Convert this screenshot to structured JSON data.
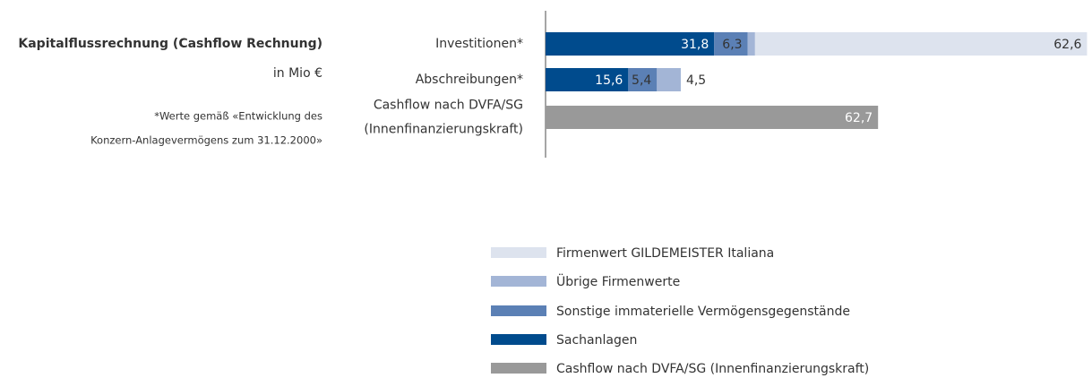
{
  "chart_data": {
    "type": "stacked-bar-horizontal",
    "title": "Kapitalflussrechnung (Cashflow Rechnung)",
    "subtitle": "in Mio €",
    "footnote": [
      "*Werte gemäß «Entwicklung des",
      "Konzern-Anlagevermögens zum 31.12.2000»"
    ],
    "categories": [
      [
        "Investitionen*"
      ],
      [
        "Abschreibungen*"
      ],
      [
        "Cashflow nach DVFA/SG",
        "(Innenfinanzierungskraft)"
      ]
    ],
    "series": [
      {
        "name": "Firmenwert GILDEMEISTER Italiana",
        "color": "#dde3ee",
        "values": [
          62.6,
          null,
          null
        ],
        "value_labels": [
          "62,6",
          null,
          null
        ]
      },
      {
        "name": "Übrige Firmenwerte",
        "color": "#a3b5d6",
        "values": [
          1.4,
          4.5,
          null
        ],
        "value_labels": [
          "1,4",
          "4,5",
          null
        ]
      },
      {
        "name": "Sonstige immaterielle Vermögensgegenstände",
        "color": "#5b80b5",
        "values": [
          6.3,
          5.4,
          null
        ],
        "value_labels": [
          "6,3",
          "5,4",
          null
        ]
      },
      {
        "name": "Sachanlagen",
        "color": "#004b8d",
        "values": [
          31.8,
          15.6,
          null
        ],
        "value_labels": [
          "31,8",
          "15,6",
          null
        ]
      },
      {
        "name": "Cashflow nach DVFA/SG (Innenfinanzierungskraft)",
        "color": "#999999",
        "values": [
          null,
          null,
          62.7
        ],
        "value_labels": [
          null,
          null,
          "62,7"
        ]
      }
    ]
  }
}
